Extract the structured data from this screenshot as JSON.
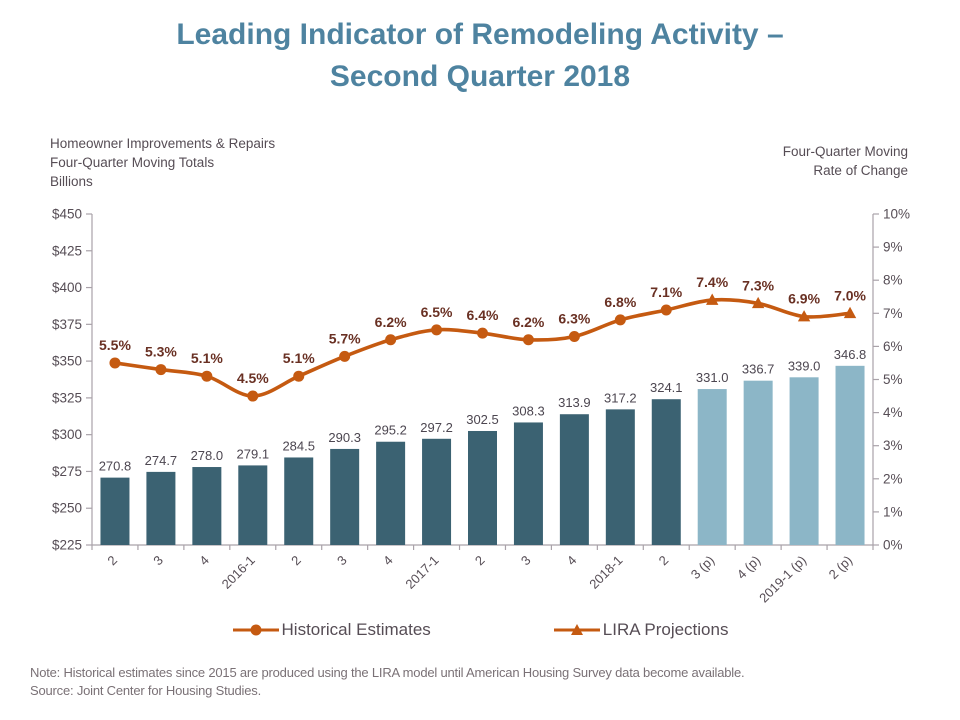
{
  "title": {
    "line1": "Leading Indicator of Remodeling Activity –",
    "line2": "Second Quarter 2018"
  },
  "left_axis_title": {
    "line1": "Homeowner Improvements & Repairs",
    "line2": "Four-Quarter Moving Totals",
    "line3": "Billions"
  },
  "right_axis_title": {
    "line1": "Four-Quarter Moving",
    "line2": "Rate of Change"
  },
  "legend": {
    "historical": "Historical Estimates",
    "projections": "LIRA Projections"
  },
  "notes": {
    "line1": "Note: Historical estimates since 2015 are produced using the LIRA model until American Housing Survey data become available.",
    "line2": "Source: Joint Center for Housing Studies."
  },
  "colors": {
    "title": "#4E83A0",
    "bar_historical": "#3B6272",
    "bar_projection": "#8CB6C7",
    "line": "#C55A11",
    "pct_label": "#693023",
    "bar_label": "#4C4650",
    "axis_text": "#564D55",
    "axis_line": "#A9A2A9",
    "legend_text": "#564D55",
    "note_text": "#7A7176"
  },
  "chart_data": {
    "type": "bar",
    "subtype": "combo-bar-line-dual-axis",
    "title": "Leading Indicator of Remodeling Activity – Second Quarter 2018",
    "categories": [
      "2",
      "3",
      "4",
      "2016-1",
      "2",
      "3",
      "4",
      "2017-1",
      "2",
      "3",
      "4",
      "2018-1",
      "2",
      "3 (p)",
      "4 (p)",
      "2019-1 (p)",
      "2 (p)"
    ],
    "historical_count": 13,
    "series": [
      {
        "name": "Homeowner Improvements & Repairs Four-Quarter Moving Totals (Billions)",
        "type": "bar",
        "axis": "left",
        "values": [
          270.8,
          274.7,
          278.0,
          279.1,
          284.5,
          290.3,
          295.2,
          297.2,
          302.5,
          308.3,
          313.9,
          317.2,
          324.1,
          331.0,
          336.7,
          339.0,
          346.8
        ]
      },
      {
        "name": "Four-Quarter Moving Rate of Change",
        "type": "line",
        "axis": "right",
        "values": [
          5.5,
          5.3,
          5.1,
          4.5,
          5.1,
          5.7,
          6.2,
          6.5,
          6.4,
          6.2,
          6.3,
          6.8,
          7.1,
          7.4,
          7.3,
          6.9,
          7.0
        ]
      }
    ],
    "left_axis": {
      "min": 225,
      "max": 450,
      "ticks": [
        "$450",
        "$425",
        "$400",
        "$375",
        "$350",
        "$325",
        "$300",
        "$275",
        "$250",
        "$225"
      ]
    },
    "right_axis": {
      "min": 0,
      "max": 10,
      "ticks": [
        "10%",
        "9%",
        "8%",
        "7%",
        "6%",
        "5%",
        "4%",
        "3%",
        "2%",
        "1%",
        "0%"
      ]
    },
    "grid": false,
    "legend_position": "bottom"
  }
}
